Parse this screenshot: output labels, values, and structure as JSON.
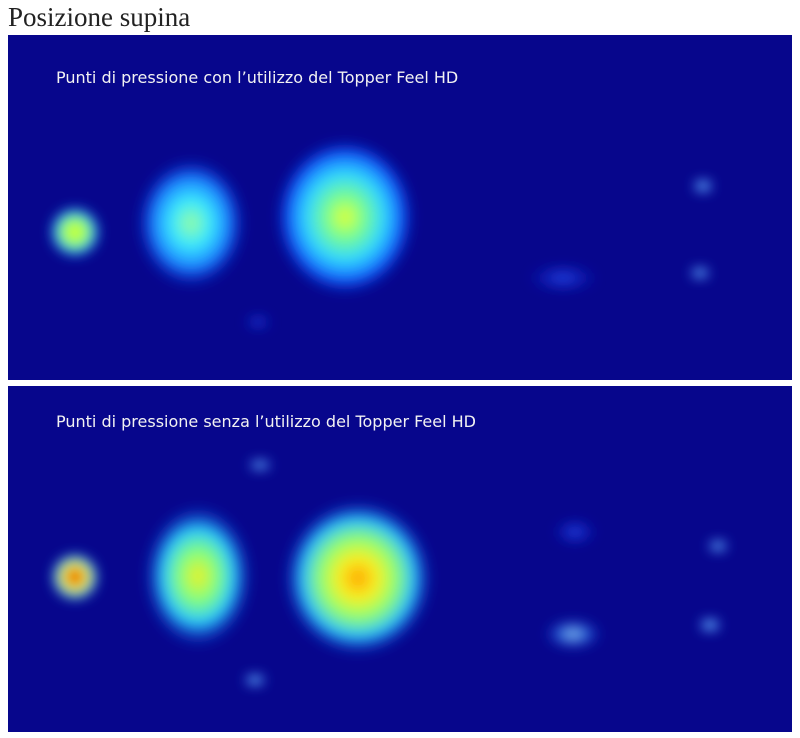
{
  "header": {
    "title": "Posizione supina"
  },
  "panels": [
    {
      "caption": "Punti di pressione con l’utilizzo del Topper Feel HD"
    },
    {
      "caption": "Punti di pressione senza l’utilizzo del Topper Feel HD"
    }
  ]
}
